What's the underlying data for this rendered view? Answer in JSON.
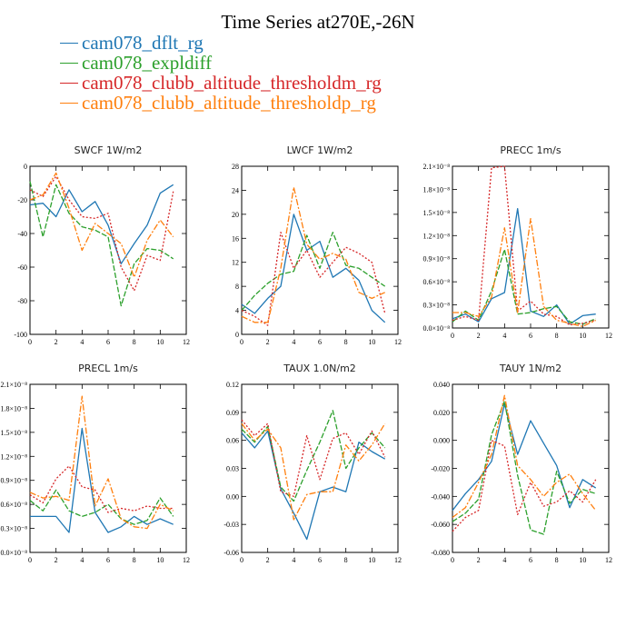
{
  "title": "Time Series at270E,-26N",
  "legend": [
    {
      "label": "cam078_dflt_rg",
      "color": "#1f77b4"
    },
    {
      "label": "cam078_expldiff",
      "color": "#2ca02c"
    },
    {
      "label": "cam078_clubb_altitude_thresholdm_rg",
      "color": "#d62728"
    },
    {
      "label": "cam078_clubb_altitude_thresholdp_rg",
      "color": "#ff7f0e"
    }
  ],
  "chart_data": [
    {
      "type": "line",
      "title": "SWCF   1W/m2",
      "x": [
        0,
        1,
        2,
        3,
        4,
        5,
        6,
        7,
        8,
        9,
        10,
        11
      ],
      "xlim": [
        0,
        12
      ],
      "xticks": [
        "0",
        "2",
        "4",
        "6",
        "8",
        "10",
        "12"
      ],
      "ylim": [
        -100,
        0
      ],
      "yticks": [
        "-100",
        "-80",
        "-60",
        "-40",
        "-20",
        "0"
      ],
      "series": [
        {
          "name": "cam078_dflt_rg",
          "values": [
            -23,
            -22,
            -30,
            -14,
            -27,
            -21,
            -35,
            -58,
            -46,
            -35,
            -16,
            -11
          ]
        },
        {
          "name": "cam078_expldiff",
          "values": [
            -9,
            -42,
            -11,
            -28,
            -36,
            -38,
            -42,
            -83,
            -58,
            -49,
            -50,
            -55
          ]
        },
        {
          "name": "cam078_clubb_altitude_thresholdm_rg",
          "values": [
            -14,
            -18,
            -6,
            -20,
            -30,
            -31,
            -28,
            -60,
            -74,
            -53,
            -56,
            -15
          ]
        },
        {
          "name": "cam078_clubb_altitude_thresholdp_rg",
          "values": [
            -20,
            -17,
            -4,
            -25,
            -50,
            -34,
            -40,
            -46,
            -66,
            -44,
            -32,
            -42
          ]
        }
      ]
    },
    {
      "type": "line",
      "title": "LWCF   1W/m2",
      "x": [
        0,
        1,
        2,
        3,
        4,
        5,
        6,
        7,
        8,
        9,
        10,
        11
      ],
      "xlim": [
        0,
        12
      ],
      "xticks": [
        "0",
        "2",
        "4",
        "6",
        "8",
        "10",
        "12"
      ],
      "ylim": [
        0,
        28
      ],
      "yticks": [
        "0",
        "4",
        "8",
        "12",
        "16",
        "20",
        "24",
        "28"
      ],
      "series": [
        {
          "name": "cam078_dflt_rg",
          "values": [
            5,
            3.5,
            6,
            8,
            20,
            14,
            15.5,
            9.5,
            11,
            9,
            4,
            2
          ]
        },
        {
          "name": "cam078_expldiff",
          "values": [
            4,
            6.5,
            8.5,
            10,
            10.5,
            16.5,
            11,
            17,
            11.5,
            11,
            9.5,
            8
          ]
        },
        {
          "name": "cam078_clubb_altitude_thresholdm_rg",
          "values": [
            4,
            3,
            1.5,
            17,
            11,
            14,
            9.5,
            12,
            14.5,
            13.5,
            12,
            3.5
          ]
        },
        {
          "name": "cam078_clubb_altitude_thresholdp_rg",
          "values": [
            3,
            2,
            2,
            11,
            24.5,
            15,
            12.5,
            13.5,
            12.5,
            7,
            6,
            7
          ]
        }
      ]
    },
    {
      "type": "line",
      "title": "PRECC   1m/s",
      "x": [
        0,
        1,
        2,
        3,
        4,
        5,
        6,
        7,
        8,
        9,
        10,
        11
      ],
      "xlim": [
        0,
        12
      ],
      "xticks": [
        "0",
        "2",
        "4",
        "6",
        "8",
        "10",
        "12"
      ],
      "ylim": [
        0,
        2.1
      ],
      "ytick_values": [
        0,
        0.3,
        0.6,
        0.9,
        1.2,
        1.5,
        1.8,
        2.1
      ],
      "yticks": [
        "0.0×10⁻⁸",
        "0.3×10⁻⁸",
        "0.6×10⁻⁸",
        "0.9×10⁻⁸",
        "1.2×10⁻⁸",
        "1.5×10⁻⁸",
        "1.8×10⁻⁸",
        "2.1×10⁻⁸"
      ],
      "series": [
        {
          "name": "cam078_dflt_rg",
          "values": [
            0.12,
            0.18,
            0.08,
            0.38,
            0.46,
            1.55,
            0.22,
            0.15,
            0.3,
            0.05,
            0.16,
            0.18
          ]
        },
        {
          "name": "cam078_expldiff",
          "values": [
            0.08,
            0.22,
            0.1,
            0.48,
            1.02,
            0.18,
            0.2,
            0.25,
            0.28,
            0.08,
            0.05,
            0.12
          ]
        },
        {
          "name": "cam078_clubb_altitude_thresholdm_rg",
          "values": [
            0.1,
            0.15,
            0.1,
            2.08,
            2.1,
            0.22,
            0.35,
            0.18,
            0.15,
            0.04,
            0.06,
            0.1
          ]
        },
        {
          "name": "cam078_clubb_altitude_thresholdp_rg",
          "values": [
            0.2,
            0.2,
            0.15,
            0.4,
            1.3,
            0.2,
            1.42,
            0.28,
            0.1,
            0.06,
            0.02,
            0.1
          ]
        }
      ]
    },
    {
      "type": "line",
      "title": "PRECL   1m/s",
      "x": [
        0,
        1,
        2,
        3,
        4,
        5,
        6,
        7,
        8,
        9,
        10,
        11
      ],
      "xlim": [
        0,
        12
      ],
      "xticks": [
        "0",
        "2",
        "4",
        "6",
        "8",
        "10",
        "12"
      ],
      "ylim": [
        0,
        2.1
      ],
      "ytick_values": [
        0,
        0.3,
        0.6,
        0.9,
        1.2,
        1.5,
        1.8,
        2.1
      ],
      "yticks": [
        "0.0×10⁻⁸",
        "0.3×10⁻⁸",
        "0.6×10⁻⁸",
        "0.9×10⁻⁸",
        "1.2×10⁻⁸",
        "1.5×10⁻⁸",
        "1.8×10⁻⁸",
        "2.1×10⁻⁸"
      ],
      "series": [
        {
          "name": "cam078_dflt_rg",
          "values": [
            0.45,
            0.45,
            0.45,
            0.25,
            1.55,
            0.5,
            0.25,
            0.32,
            0.45,
            0.35,
            0.42,
            0.35
          ]
        },
        {
          "name": "cam078_expldiff",
          "values": [
            0.65,
            0.52,
            0.78,
            0.52,
            0.45,
            0.5,
            0.6,
            0.42,
            0.35,
            0.4,
            0.68,
            0.45
          ]
        },
        {
          "name": "cam078_clubb_altitude_thresholdm_rg",
          "values": [
            0.72,
            0.62,
            0.92,
            1.08,
            0.82,
            0.78,
            0.5,
            0.55,
            0.52,
            0.58,
            0.55,
            0.55
          ]
        },
        {
          "name": "cam078_clubb_altitude_thresholdp_rg",
          "values": [
            0.75,
            0.68,
            0.7,
            0.65,
            1.95,
            0.58,
            0.92,
            0.42,
            0.32,
            0.3,
            0.6,
            0.52
          ]
        }
      ]
    },
    {
      "type": "line",
      "title": "TAUX   1.0N/m2",
      "x": [
        0,
        1,
        2,
        3,
        4,
        5,
        6,
        7,
        8,
        9,
        10,
        11
      ],
      "xlim": [
        0,
        12
      ],
      "xticks": [
        "0",
        "2",
        "4",
        "6",
        "8",
        "10",
        "12"
      ],
      "ylim": [
        -0.06,
        0.12
      ],
      "yticks": [
        "-0.06",
        "-0.03",
        "0.00",
        "0.03",
        "0.06",
        "0.09",
        "0.12"
      ],
      "series": [
        {
          "name": "cam078_dflt_rg",
          "values": [
            0.068,
            0.052,
            0.07,
            0.008,
            -0.018,
            -0.046,
            0.005,
            0.01,
            0.005,
            0.058,
            0.048,
            0.04
          ]
        },
        {
          "name": "cam078_expldiff",
          "values": [
            0.072,
            0.058,
            0.075,
            0.01,
            -0.005,
            0.028,
            0.058,
            0.092,
            0.03,
            0.052,
            0.068,
            0.052
          ]
        },
        {
          "name": "cam078_clubb_altitude_thresholdm_rg",
          "values": [
            0.082,
            0.065,
            0.078,
            0.005,
            0.0,
            0.065,
            0.018,
            0.062,
            0.068,
            0.045,
            0.07,
            0.042
          ]
        },
        {
          "name": "cam078_clubb_altitude_thresholdp_rg",
          "values": [
            0.078,
            0.06,
            0.072,
            0.052,
            -0.025,
            0.002,
            0.005,
            0.005,
            0.055,
            0.038,
            0.055,
            0.078
          ]
        }
      ]
    },
    {
      "type": "line",
      "title": "TAUY   1N/m2",
      "x": [
        0,
        1,
        2,
        3,
        4,
        5,
        6,
        7,
        8,
        9,
        10,
        11
      ],
      "xlim": [
        0,
        12
      ],
      "xticks": [
        "0",
        "2",
        "4",
        "6",
        "8",
        "10",
        "12"
      ],
      "ylim": [
        -0.08,
        0.04
      ],
      "yticks": [
        "-0.080",
        "-0.060",
        "-0.040",
        "-0.020",
        "0.000",
        "0.020",
        "0.040"
      ],
      "series": [
        {
          "name": "cam078_dflt_rg",
          "values": [
            -0.05,
            -0.038,
            -0.028,
            -0.015,
            0.026,
            -0.01,
            0.014,
            -0.002,
            -0.018,
            -0.048,
            -0.028,
            -0.034
          ]
        },
        {
          "name": "cam078_expldiff",
          "values": [
            -0.058,
            -0.052,
            -0.042,
            0.004,
            0.028,
            -0.025,
            -0.064,
            -0.067,
            -0.022,
            -0.045,
            -0.035,
            -0.038
          ]
        },
        {
          "name": "cam078_clubb_altitude_thresholdm_rg",
          "values": [
            -0.065,
            -0.055,
            -0.05,
            0.0,
            -0.004,
            -0.053,
            -0.03,
            -0.047,
            -0.044,
            -0.036,
            -0.044,
            -0.028
          ]
        },
        {
          "name": "cam078_clubb_altitude_thresholdp_rg",
          "values": [
            -0.055,
            -0.048,
            -0.03,
            -0.01,
            0.032,
            -0.018,
            -0.028,
            -0.04,
            -0.03,
            -0.024,
            -0.038,
            -0.05
          ]
        }
      ]
    }
  ]
}
